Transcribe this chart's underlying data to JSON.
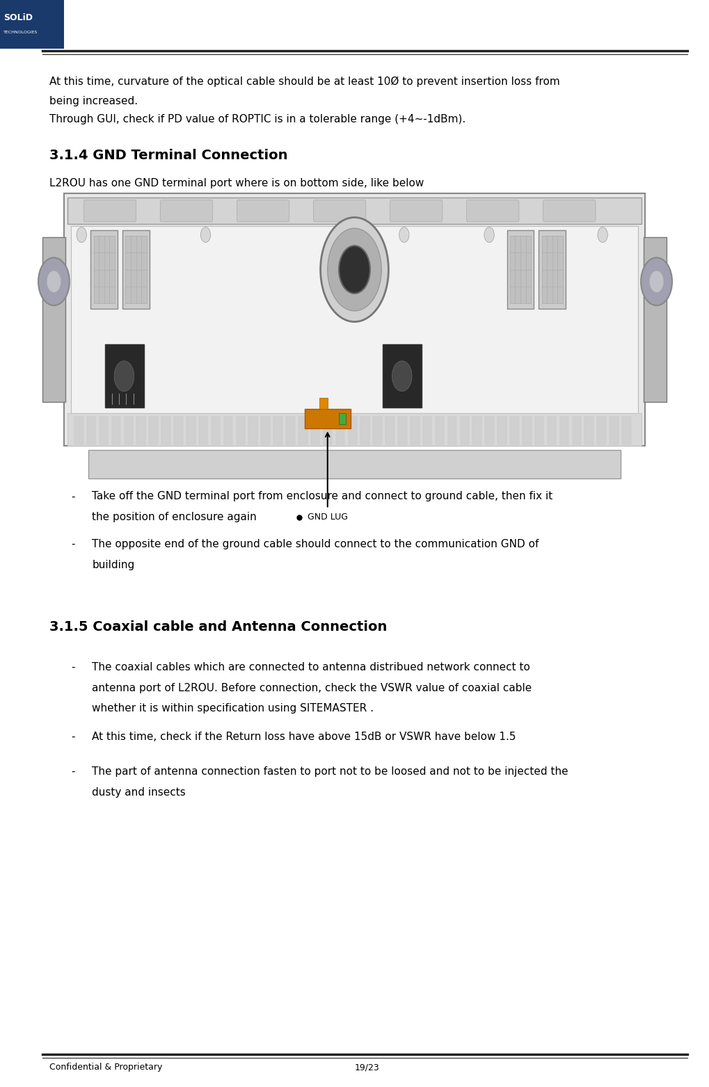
{
  "page_width": 10.19,
  "page_height": 15.63,
  "bg_color": "#ffffff",
  "logo_box_color": "#1a3a6b",
  "footer_left": "Confidential & Proprietary",
  "footer_right": "19/23",
  "logo_text_top": "SOLiD",
  "logo_text_bottom": "TECHNOLOGIES",
  "section_heading_1": "3.1.4 GND Terminal Connection",
  "section_heading_2": "3.1.5 Coaxial cable and Antenna Connection",
  "para1_line1": "At this time, curvature of the optical cable should be at least 10Ø to prevent insertion loss from",
  "para1_line2": "being increased.",
  "para1_line3": "Through GUI, check if PD value of ROPTIC is in a tolerable range (+4~-1dBm).",
  "para2": "L2ROU has one GND terminal port where is on bottom side, like below",
  "gnd_label": "GND LUG",
  "bullet1_line1": "Take off the GND terminal port from enclosure and connect to ground cable, then fix it",
  "bullet1_line2": "the position of enclosure again",
  "bullet2_line1": "The opposite end of the ground cable should connect to the communication GND of",
  "bullet2_line2": "building",
  "bullet3_line1": "The coaxial cables which are connected to antenna distribued network connect to",
  "bullet3_line2": "antenna port of L2ROU. Before connection, check the VSWR value of coaxial cable",
  "bullet3_line3": "whether it is within specification using SITEMASTER .",
  "bullet4": "At this time, check if the Return loss have above 15dB or VSWR have below 1.5",
  "bullet5_line1": "The part of antenna connection fasten to port not to be loosed and not to be injected the",
  "bullet5_line2": "dusty and insects",
  "font_size_body": 11,
  "font_size_heading": 14,
  "font_size_footer": 9,
  "text_color": "#000000",
  "heading_color": "#000000"
}
